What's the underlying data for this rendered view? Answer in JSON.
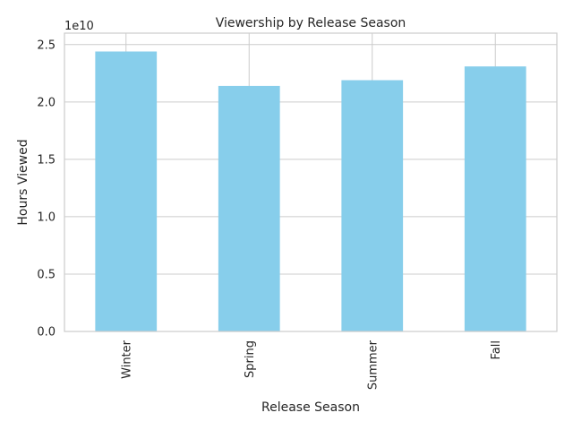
{
  "chart_data": {
    "type": "bar",
    "title": "Viewership by Release Season",
    "xlabel": "Release Season",
    "ylabel": "Hours Viewed",
    "offset_label": "1e10",
    "categories": [
      "Winter",
      "Spring",
      "Summer",
      "Fall"
    ],
    "values": [
      24400000000,
      21400000000,
      21900000000,
      23100000000
    ],
    "ylim": [
      0,
      26000000000
    ],
    "yticks": [
      0,
      5000000000,
      10000000000,
      15000000000,
      20000000000,
      25000000000
    ],
    "ytick_labels": [
      "0.0",
      "0.5",
      "1.0",
      "1.5",
      "2.0",
      "2.5"
    ],
    "grid": true,
    "bar_color": "#87ceeb",
    "grid_color": "#cccccc"
  }
}
